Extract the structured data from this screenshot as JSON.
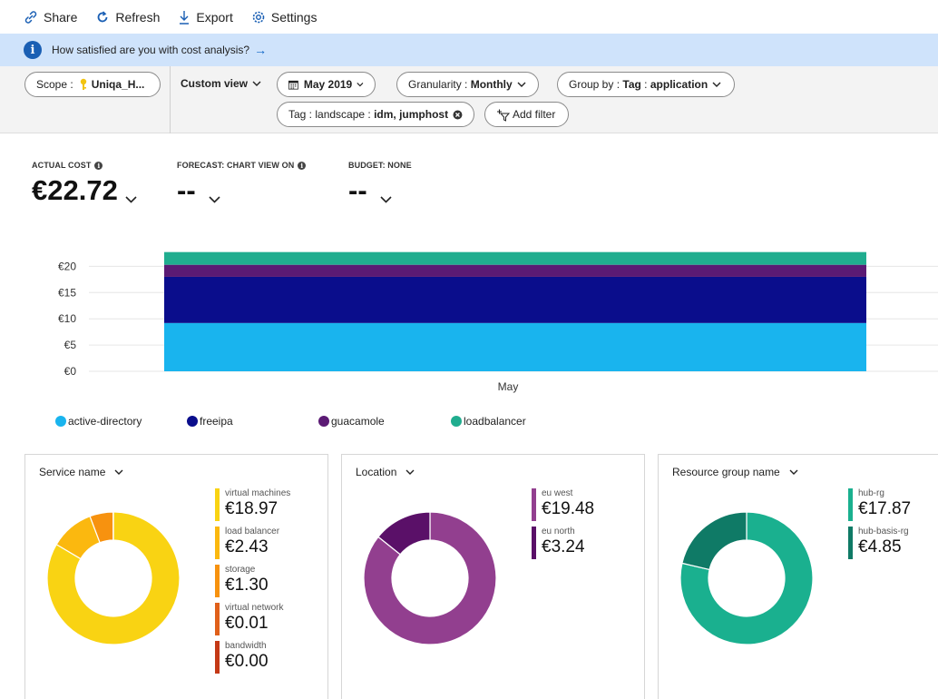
{
  "toolbar": {
    "share": "Share",
    "refresh": "Refresh",
    "export": "Export",
    "settings": "Settings"
  },
  "banner": {
    "text": "How satisfied are you with cost analysis?",
    "arrow": "→"
  },
  "filters": {
    "scope_label": "Scope :",
    "scope_value": "Uniqa_H...",
    "view": "Custom view",
    "date": "May 2019",
    "granularity_label": "Granularity :",
    "granularity_value": "Monthly",
    "groupby_label": "Group by :",
    "groupby_key": "Tag",
    "groupby_sep": ":",
    "groupby_value": "application",
    "tag_label": "Tag : landscape :",
    "tag_value": "idm, jumphost",
    "add_filter": "Add filter"
  },
  "kpis": {
    "actual_label": "ACTUAL COST",
    "actual_value": "€22.72",
    "forecast_label": "FORECAST: CHART VIEW ON",
    "forecast_value": "--",
    "budget_label": "BUDGET: NONE",
    "budget_value": "--"
  },
  "colors": {
    "active_directory": "#19b4ee",
    "freeipa": "#0a0d8c",
    "guacamole": "#5b1a74",
    "loadbalancer": "#20ad8f"
  },
  "chart_data": {
    "type": "bar",
    "stacked": true,
    "categories": [
      "May"
    ],
    "yticks": [
      "€0",
      "€5",
      "€10",
      "€15",
      "€20"
    ],
    "ylim": [
      0,
      25
    ],
    "grid": true,
    "legend_position": "bottom-left",
    "series": [
      {
        "name": "active-directory",
        "values": [
          9.2
        ]
      },
      {
        "name": "freeipa",
        "values": [
          8.8
        ]
      },
      {
        "name": "guacamole",
        "values": [
          2.3
        ]
      },
      {
        "name": "loadbalancer",
        "values": [
          2.42
        ]
      }
    ]
  },
  "cards": [
    {
      "title": "Service name",
      "items": [
        {
          "name": "virtual machines",
          "value": "€18.97",
          "amount": 18.97,
          "color": "#f9d313"
        },
        {
          "name": "load balancer",
          "value": "€2.43",
          "amount": 2.43,
          "color": "#fbb80f"
        },
        {
          "name": "storage",
          "value": "€1.30",
          "amount": 1.3,
          "color": "#f7920f"
        },
        {
          "name": "virtual network",
          "value": "€0.01",
          "amount": 0.01,
          "color": "#e0601a"
        },
        {
          "name": "bandwidth",
          "value": "€0.00",
          "amount": 0.0,
          "color": "#c43916"
        }
      ]
    },
    {
      "title": "Location",
      "items": [
        {
          "name": "eu west",
          "value": "€19.48",
          "amount": 19.48,
          "color": "#923f8f"
        },
        {
          "name": "eu north",
          "value": "€3.24",
          "amount": 3.24,
          "color": "#5a1068"
        }
      ]
    },
    {
      "title": "Resource group name",
      "items": [
        {
          "name": "hub-rg",
          "value": "€17.87",
          "amount": 17.87,
          "color": "#1ab08f"
        },
        {
          "name": "hub-basis-rg",
          "value": "€4.85",
          "amount": 4.85,
          "color": "#0f7a66"
        }
      ]
    }
  ]
}
